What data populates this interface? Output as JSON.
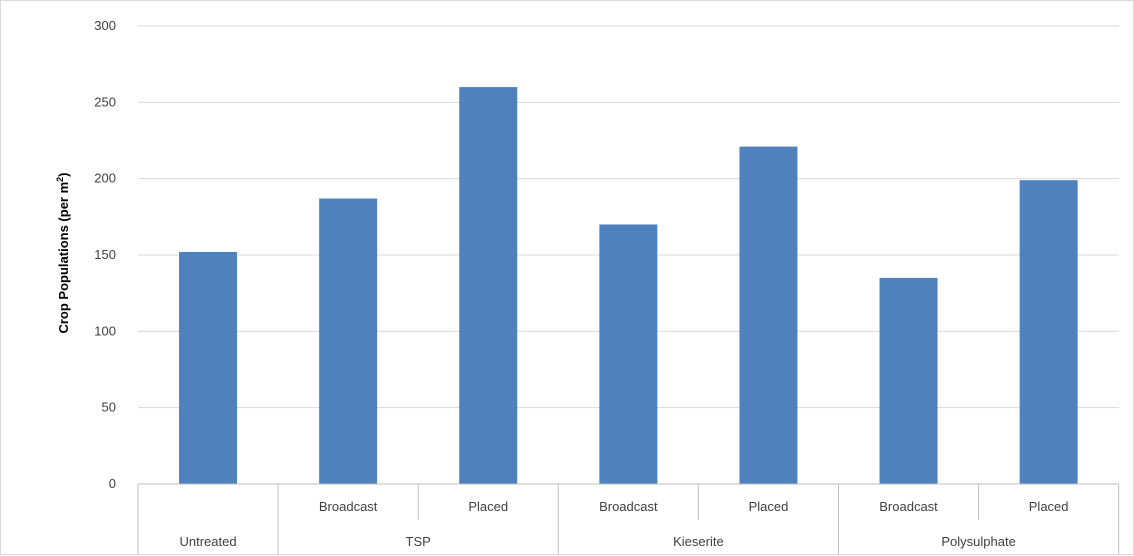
{
  "chart_data": {
    "type": "bar",
    "title": "",
    "xlabel": "",
    "ylabel": "Crop Populations (per m",
    "ylabel_superscript": "2",
    "ylabel_close": ")",
    "ylim": [
      0,
      300
    ],
    "yticks": [
      0,
      50,
      100,
      150,
      200,
      250,
      300
    ],
    "grid": true,
    "legend": "none",
    "bar_color": "#4f81bd",
    "groups": [
      {
        "name": "Untreated",
        "categories": [
          ""
        ],
        "values": [
          152
        ]
      },
      {
        "name": "TSP",
        "categories": [
          "Broadcast",
          "Placed"
        ],
        "values": [
          187,
          260
        ]
      },
      {
        "name": "Kieserite",
        "categories": [
          "Broadcast",
          "Placed"
        ],
        "values": [
          170,
          221
        ]
      },
      {
        "name": "Polysulphate",
        "categories": [
          "Broadcast",
          "Placed"
        ],
        "values": [
          135,
          199
        ]
      }
    ]
  }
}
